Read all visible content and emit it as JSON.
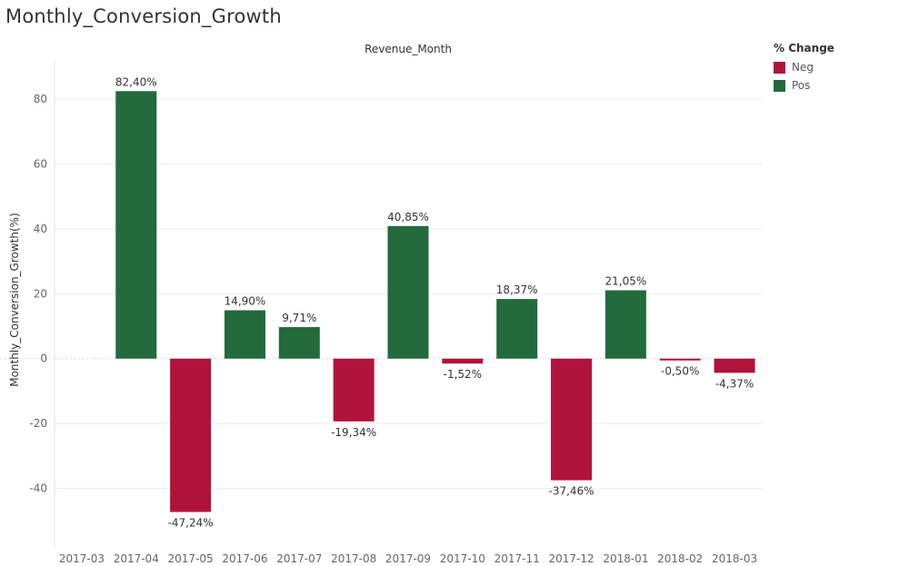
{
  "page": {
    "title": "Monthly_Conversion_Growth"
  },
  "legend": {
    "title": "% Change",
    "items": [
      {
        "label": "Neg",
        "color": "#B0133A"
      },
      {
        "label": "Pos",
        "color": "#236A3D"
      }
    ]
  },
  "colors": {
    "neg": "#B0133A",
    "pos": "#236A3D",
    "grid": "#EDEDED",
    "zero_line": "#C8C8C8",
    "axis_text": "#666666"
  },
  "chart_data": {
    "type": "bar",
    "title": "Monthly_Conversion_Growth",
    "header": "Revenue_Month",
    "xlabel": "",
    "ylabel": "Monthly_Conversion_Growth(%)",
    "ylim": [
      -58,
      92
    ],
    "yticks": [
      -40,
      -20,
      0,
      20,
      40,
      60,
      80
    ],
    "grid": true,
    "legend_position": "top-right",
    "categories": [
      "2017-03",
      "2017-04",
      "2017-05",
      "2017-06",
      "2017-07",
      "2017-08",
      "2017-09",
      "2017-10",
      "2017-11",
      "2017-12",
      "2018-01",
      "2018-02",
      "2018-03"
    ],
    "values": [
      null,
      82.4,
      -47.24,
      14.9,
      9.71,
      -19.34,
      40.85,
      -1.52,
      18.37,
      -37.46,
      21.05,
      -0.5,
      -4.37
    ],
    "data_labels": [
      "",
      "82,40%",
      "-47,24%",
      "14,90%",
      "9,71%",
      "-19,34%",
      "40,85%",
      "-1,52%",
      "18,37%",
      "-37,46%",
      "21,05%",
      "-0,50%",
      "-4,37%"
    ]
  }
}
